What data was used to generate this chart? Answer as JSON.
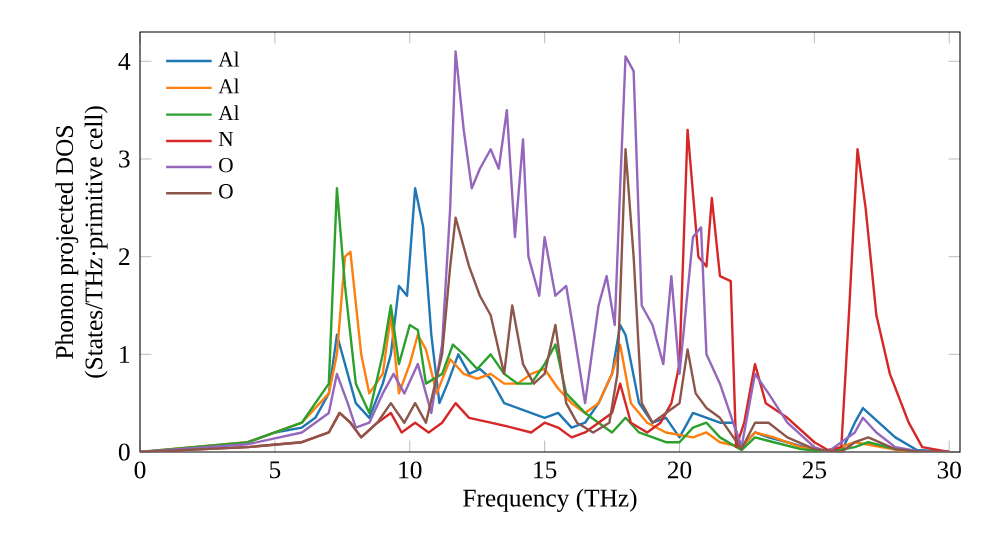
{
  "chart_data": {
    "type": "line",
    "xlabel": "Frequency (THz)",
    "ylabel": "Phonon projected DOS\n(States/THz·primitive cell)",
    "xlim": [
      0,
      30.4
    ],
    "ylim": [
      0,
      4.3
    ],
    "xticks": [
      0,
      5,
      10,
      15,
      20,
      25,
      30
    ],
    "yticks": [
      0,
      1,
      2,
      3,
      4
    ],
    "legend": "top left",
    "grid": false,
    "series": [
      {
        "name": "Al",
        "color": "#1f77b4",
        "x": [
          4,
          5,
          6,
          6.5,
          7,
          7.3,
          7.7,
          8,
          8.5,
          9,
          9.3,
          9.6,
          9.9,
          10.2,
          10.5,
          10.8,
          11.1,
          11.4,
          11.8,
          12.2,
          12.6,
          13,
          13.5,
          14,
          14.5,
          15,
          15.5,
          16,
          16.5,
          17,
          17.5,
          17.8,
          18,
          18.5,
          19,
          19.5,
          20,
          20.5,
          21,
          21.5,
          22,
          22.3,
          22.8,
          23.3,
          24,
          25,
          25.5,
          26,
          26.5,
          26.8,
          27.2,
          28,
          28.8,
          30
        ],
        "values": [
          0.1,
          0.2,
          0.25,
          0.35,
          0.6,
          1.2,
          0.8,
          0.5,
          0.35,
          0.7,
          1.0,
          1.7,
          1.6,
          2.7,
          2.3,
          1.2,
          0.5,
          0.7,
          1.0,
          0.8,
          0.85,
          0.75,
          0.5,
          0.45,
          0.4,
          0.35,
          0.4,
          0.25,
          0.3,
          0.5,
          0.8,
          1.3,
          1.2,
          0.5,
          0.3,
          0.35,
          0.15,
          0.4,
          0.35,
          0.3,
          0.3,
          0.05,
          0.2,
          0.15,
          0.1,
          0.02,
          0,
          0,
          0.3,
          0.45,
          0.35,
          0.15,
          0.02,
          0
        ]
      },
      {
        "name": "Al",
        "color": "#ff7f0e",
        "x": [
          0,
          4,
          6,
          7,
          7.3,
          7.6,
          7.8,
          8.2,
          8.5,
          9,
          9.3,
          9.6,
          10,
          10.3,
          10.6,
          11,
          11.5,
          12,
          12.5,
          13,
          13.5,
          14,
          14.5,
          15,
          15.5,
          16,
          16.5,
          17,
          17.5,
          17.8,
          18.2,
          18.8,
          19.5,
          20.5,
          21,
          21.5,
          22.3,
          22.8,
          23.5,
          24.5,
          25.5,
          26.5,
          27.5,
          28.5,
          30
        ],
        "values": [
          0,
          0.1,
          0.3,
          0.6,
          1.0,
          2.0,
          2.05,
          1.0,
          0.6,
          0.8,
          1.4,
          0.6,
          0.9,
          1.2,
          1.05,
          0.6,
          0.95,
          0.8,
          0.75,
          0.8,
          0.7,
          0.7,
          0.8,
          0.85,
          0.65,
          0.5,
          0.4,
          0.5,
          0.8,
          1.1,
          0.5,
          0.3,
          0.2,
          0.15,
          0.2,
          0.1,
          0.05,
          0.2,
          0.15,
          0.05,
          0,
          0.1,
          0.05,
          0,
          0
        ]
      },
      {
        "name": "Al",
        "color": "#2ca02c",
        "x": [
          0,
          4,
          6,
          7,
          7.3,
          7.6,
          8,
          8.5,
          9,
          9.3,
          9.6,
          10,
          10.3,
          10.6,
          11.2,
          11.6,
          12,
          12.5,
          13,
          13.5,
          14,
          14.5,
          15,
          15.4,
          15.8,
          16.5,
          17,
          17.5,
          18,
          18.5,
          19,
          19.5,
          20,
          20.5,
          21,
          21.5,
          22.3,
          22.8,
          23.5,
          24.5,
          25.5,
          26.5,
          27,
          28,
          29,
          30
        ],
        "values": [
          0,
          0.1,
          0.3,
          0.7,
          2.7,
          1.7,
          0.7,
          0.4,
          1.0,
          1.5,
          0.9,
          1.3,
          1.25,
          0.7,
          0.8,
          1.1,
          1.0,
          0.85,
          1.0,
          0.8,
          0.7,
          0.7,
          0.9,
          1.1,
          0.6,
          0.4,
          0.3,
          0.2,
          0.35,
          0.2,
          0.15,
          0.1,
          0.1,
          0.25,
          0.3,
          0.15,
          0.02,
          0.15,
          0.1,
          0.03,
          0,
          0.05,
          0.1,
          0.03,
          0,
          0
        ]
      },
      {
        "name": "N",
        "color": "#d62728",
        "x": [
          0,
          4,
          6,
          7,
          7.4,
          7.8,
          8.2,
          8.8,
          9.3,
          9.7,
          10.2,
          10.7,
          11.2,
          11.7,
          12.2,
          13,
          13.8,
          14.5,
          15,
          15.5,
          16,
          16.5,
          17,
          17.5,
          17.8,
          18.2,
          18.8,
          19.3,
          19.7,
          20,
          20.3,
          20.7,
          21,
          21.2,
          21.5,
          21.9,
          22.1,
          22.4,
          22.8,
          23.2,
          24,
          25,
          25.5,
          26,
          26.3,
          26.6,
          26.9,
          27.3,
          27.8,
          28.5,
          29,
          30
        ],
        "values": [
          0,
          0.05,
          0.1,
          0.2,
          0.4,
          0.3,
          0.15,
          0.3,
          0.4,
          0.2,
          0.3,
          0.2,
          0.3,
          0.5,
          0.35,
          0.3,
          0.25,
          0.2,
          0.3,
          0.25,
          0.15,
          0.2,
          0.3,
          0.4,
          0.7,
          0.3,
          0.2,
          0.3,
          0.5,
          0.9,
          3.3,
          2.0,
          1.9,
          2.6,
          1.8,
          1.75,
          0.05,
          0.3,
          0.9,
          0.5,
          0.35,
          0.1,
          0.02,
          0.05,
          1.5,
          3.1,
          2.5,
          1.4,
          0.8,
          0.3,
          0.05,
          0
        ]
      },
      {
        "name": "O",
        "color": "#9467bd",
        "x": [
          0,
          4,
          6,
          7,
          7.3,
          7.7,
          8,
          8.5,
          9,
          9.4,
          9.8,
          10.3,
          10.8,
          11.2,
          11.5,
          11.7,
          12,
          12.3,
          12.6,
          13,
          13.3,
          13.6,
          13.9,
          14.2,
          14.4,
          14.8,
          15,
          15.4,
          15.8,
          16.1,
          16.5,
          17,
          17.3,
          17.6,
          17.8,
          18,
          18.3,
          18.6,
          19,
          19.4,
          19.7,
          20,
          20.5,
          20.8,
          21,
          21.5,
          22.3,
          22.8,
          23.3,
          24,
          25,
          25.5,
          26.5,
          26.8,
          27.3,
          28,
          29,
          30
        ],
        "values": [
          0,
          0.08,
          0.2,
          0.4,
          0.8,
          0.5,
          0.25,
          0.3,
          0.6,
          0.8,
          0.6,
          0.9,
          0.4,
          1.1,
          2.5,
          4.1,
          3.3,
          2.7,
          2.9,
          3.1,
          2.9,
          3.5,
          2.2,
          3.2,
          2.0,
          1.6,
          2.2,
          1.6,
          1.7,
          1.2,
          0.5,
          1.5,
          1.8,
          1.3,
          2.7,
          4.05,
          3.9,
          1.5,
          1.3,
          0.9,
          1.8,
          0.8,
          2.2,
          2.3,
          1.0,
          0.7,
          0.05,
          0.8,
          0.6,
          0.3,
          0.05,
          0,
          0.2,
          0.35,
          0.2,
          0.05,
          0,
          0
        ]
      },
      {
        "name": "O",
        "color": "#8c564b",
        "x": [
          0,
          4,
          6,
          7,
          7.4,
          7.8,
          8.2,
          8.8,
          9.3,
          9.8,
          10.2,
          10.6,
          11.2,
          11.5,
          11.7,
          12.2,
          12.6,
          13,
          13.5,
          13.8,
          14.2,
          14.6,
          15,
          15.4,
          15.8,
          16.2,
          16.8,
          17.4,
          17.7,
          18,
          18.3,
          18.6,
          19,
          19.5,
          20,
          20.3,
          20.6,
          21,
          21.5,
          22.3,
          22.8,
          23.3,
          24,
          25,
          26,
          26.5,
          27,
          28,
          29,
          30
        ],
        "values": [
          0,
          0.05,
          0.1,
          0.2,
          0.4,
          0.3,
          0.15,
          0.3,
          0.5,
          0.3,
          0.5,
          0.3,
          1.0,
          1.9,
          2.4,
          1.9,
          1.6,
          1.4,
          0.8,
          1.5,
          0.9,
          0.7,
          0.8,
          1.3,
          0.5,
          0.3,
          0.2,
          0.3,
          0.8,
          3.1,
          2.0,
          0.5,
          0.3,
          0.4,
          0.5,
          1.05,
          0.6,
          0.45,
          0.35,
          0.03,
          0.3,
          0.3,
          0.15,
          0.03,
          0,
          0.1,
          0.15,
          0.03,
          0,
          0
        ]
      }
    ]
  }
}
